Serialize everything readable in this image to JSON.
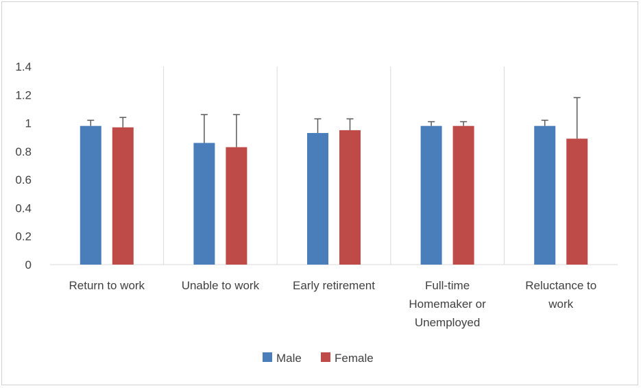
{
  "chart_data": {
    "type": "bar",
    "title": "",
    "xlabel": "",
    "ylabel": "",
    "ylim": [
      0,
      1.4
    ],
    "yticks": [
      "0",
      "0.2",
      "0.4",
      "0.6",
      "0.8",
      "1",
      "1.2",
      "1.4"
    ],
    "categories": [
      [
        "Return to work"
      ],
      [
        "Unable to work"
      ],
      [
        "Early retirement"
      ],
      [
        "Full-time",
        "Homemaker or",
        "Unemployed"
      ],
      [
        "Reluctance to",
        "work"
      ]
    ],
    "series": [
      {
        "name": "Male",
        "color": "#4a7ebb",
        "values": [
          0.98,
          0.86,
          0.93,
          0.98,
          0.98
        ],
        "errors": [
          0.04,
          0.2,
          0.1,
          0.03,
          0.04
        ]
      },
      {
        "name": "Female",
        "color": "#be4b48",
        "values": [
          0.97,
          0.83,
          0.95,
          0.98,
          0.89
        ],
        "errors": [
          0.07,
          0.23,
          0.08,
          0.03,
          0.29
        ]
      }
    ],
    "grid": {
      "vertical_category_separators": true,
      "horizontal": false
    },
    "legend": "bottom-center"
  }
}
